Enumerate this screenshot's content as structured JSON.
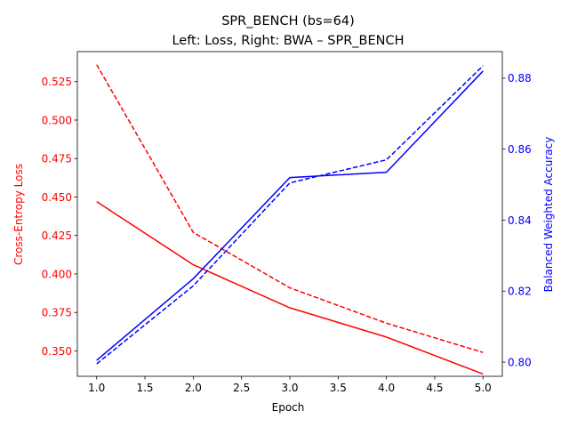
{
  "chart_data": {
    "type": "line",
    "title": "SPR_BENCH (bs=64)",
    "subtitle": "Left: Loss, Right: BWA – SPR_BENCH",
    "xlabel": "Epoch",
    "ylabel_left": "Cross-Entropy Loss",
    "ylabel_right": "Balanced Weighted Accuracy",
    "x": [
      1,
      2,
      3,
      4,
      5
    ],
    "xlim": [
      0.8,
      5.2
    ],
    "xticks": [
      "1.0",
      "1.5",
      "2.0",
      "2.5",
      "3.0",
      "3.5",
      "4.0",
      "4.5",
      "5.0"
    ],
    "ylim_left": [
      0.3335,
      0.5445
    ],
    "yticks_left": [
      "0.350",
      "0.375",
      "0.400",
      "0.425",
      "0.450",
      "0.475",
      "0.500",
      "0.525"
    ],
    "ylim_right": [
      0.796,
      0.8875
    ],
    "yticks_right": [
      "0.80",
      "0.82",
      "0.84",
      "0.86",
      "0.88"
    ],
    "left_color": "#ff0000",
    "right_color": "#0000ff",
    "series": [
      {
        "axis": "left",
        "style": "solid",
        "color": "#ff0000",
        "values": [
          0.447,
          0.406,
          0.378,
          0.359,
          0.335
        ]
      },
      {
        "axis": "left",
        "style": "dashed",
        "color": "#ff0000",
        "values": [
          0.536,
          0.427,
          0.391,
          0.368,
          0.349
        ]
      },
      {
        "axis": "right",
        "style": "solid",
        "color": "#0000ff",
        "values": [
          0.8005,
          0.8235,
          0.852,
          0.8535,
          0.882
        ]
      },
      {
        "axis": "right",
        "style": "dashed",
        "color": "#0000ff",
        "values": [
          0.7995,
          0.8215,
          0.8505,
          0.857,
          0.8835
        ]
      }
    ]
  }
}
